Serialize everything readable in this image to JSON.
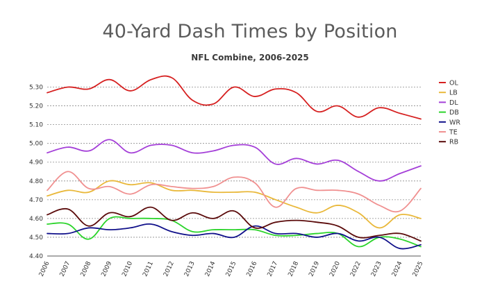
{
  "chart_data": {
    "type": "line",
    "title": "40-Yard Dash Times by Position",
    "subtitle": "NFL Combine, 2006-2025",
    "xlabel": "",
    "ylabel": "",
    "ylim": [
      4.4,
      5.35
    ],
    "y_ticks": [
      "4.40",
      "4.50",
      "4.60",
      "4.70",
      "4.80",
      "4.90",
      "5.00",
      "5.10",
      "5.20",
      "5.30"
    ],
    "grid": "horizontal dashed",
    "legend_position": "right",
    "categories": [
      "2006",
      "2007",
      "2008",
      "2009",
      "2010",
      "2011",
      "2012",
      "2013",
      "2014",
      "2015",
      "2016",
      "2017",
      "2018",
      "2019",
      "2020",
      "2022",
      "2023",
      "2024",
      "2025"
    ],
    "series": [
      {
        "name": "OL",
        "color": "#d62020",
        "values": [
          5.27,
          5.3,
          5.29,
          5.34,
          5.28,
          5.34,
          5.35,
          5.23,
          5.21,
          5.3,
          5.25,
          5.29,
          5.27,
          5.17,
          5.2,
          5.14,
          5.19,
          5.16,
          5.13
        ]
      },
      {
        "name": "LB",
        "color": "#e9b83a",
        "values": [
          4.72,
          4.75,
          4.74,
          4.8,
          4.78,
          4.79,
          4.75,
          4.75,
          4.74,
          4.74,
          4.74,
          4.7,
          4.66,
          4.63,
          4.67,
          4.63,
          4.55,
          4.62,
          4.6
        ]
      },
      {
        "name": "DL",
        "color": "#a43fd8",
        "values": [
          4.95,
          4.98,
          4.96,
          5.02,
          4.95,
          4.99,
          4.99,
          4.95,
          4.96,
          4.99,
          4.98,
          4.89,
          4.92,
          4.89,
          4.91,
          4.85,
          4.8,
          4.84,
          4.88
        ]
      },
      {
        "name": "DB",
        "color": "#2bd42b",
        "values": [
          4.57,
          4.57,
          4.49,
          4.6,
          4.6,
          4.6,
          4.59,
          4.53,
          4.54,
          4.54,
          4.54,
          4.51,
          4.51,
          4.52,
          4.52,
          4.45,
          4.5,
          4.49,
          4.45
        ]
      },
      {
        "name": "WR",
        "color": "#10108a",
        "values": [
          4.52,
          4.52,
          4.55,
          4.54,
          4.55,
          4.57,
          4.53,
          4.51,
          4.52,
          4.5,
          4.56,
          4.52,
          4.52,
          4.5,
          4.52,
          4.48,
          4.5,
          4.44,
          4.46
        ]
      },
      {
        "name": "TE",
        "color": "#f09090",
        "values": [
          4.75,
          4.85,
          4.76,
          4.77,
          4.73,
          4.78,
          4.77,
          4.76,
          4.77,
          4.82,
          4.79,
          4.66,
          4.76,
          4.75,
          4.75,
          4.73,
          4.67,
          4.64,
          4.76
        ]
      },
      {
        "name": "RB",
        "color": "#5a0a0a",
        "values": [
          4.62,
          4.65,
          4.56,
          4.63,
          4.61,
          4.66,
          4.59,
          4.63,
          4.6,
          4.64,
          4.55,
          4.58,
          4.59,
          4.58,
          4.56,
          4.5,
          4.51,
          4.52,
          4.48
        ]
      }
    ]
  }
}
